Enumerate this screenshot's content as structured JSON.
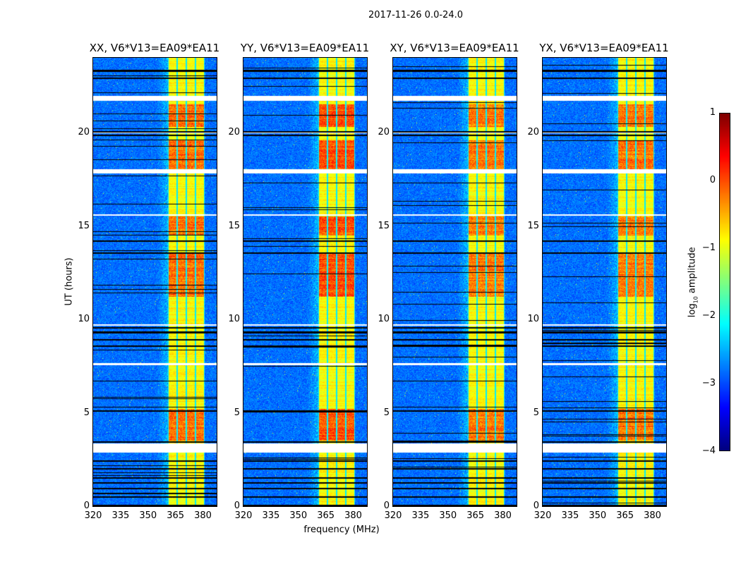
{
  "chart_data": {
    "type": "heatmap",
    "title": "2017-11-26 0.0-24.0",
    "xlabel": "frequency (MHz)",
    "ylabel": "UT (hours)",
    "xlim": [
      320,
      387.5
    ],
    "ylim": [
      0,
      24
    ],
    "xticks": [
      "320",
      "335",
      "350",
      "365",
      "380"
    ],
    "xtick_values": [
      320,
      335,
      350,
      365,
      380
    ],
    "yticks": [
      "0",
      "5",
      "10",
      "15",
      "20"
    ],
    "ytick_values": [
      0,
      5,
      10,
      15,
      20
    ],
    "colormap": "jet",
    "colorbar": {
      "label": "log10 amplitude",
      "label_main": "log",
      "label_sub": "10",
      "label_rest": " amplitude",
      "range": [
        -4,
        1
      ],
      "ticks": [
        "1",
        "0",
        "−1",
        "−2",
        "−3",
        "−4"
      ],
      "tick_values": [
        1,
        0,
        -1,
        -2,
        -3,
        -4
      ]
    },
    "panels": [
      {
        "title": "XX, V6*V13=EA09*EA11",
        "band_peak": 0.15
      },
      {
        "title": "YY, V6*V13=EA09*EA11",
        "band_peak": 0.3
      },
      {
        "title": "XY, V6*V13=EA09*EA11",
        "band_peak": 0.1
      },
      {
        "title": "YX, V6*V13=EA09*EA11",
        "band_peak": 0.1
      }
    ],
    "background_level": -3.3,
    "band_mhz": [
      361,
      381
    ],
    "band_level": -1.1,
    "channel_gaps_mhz": [
      361,
      366,
      371,
      376,
      381
    ],
    "active_periods_hours": [
      [
        3.5,
        5.2
      ],
      [
        11.2,
        13.5
      ],
      [
        18.0,
        19.6
      ],
      [
        20.3,
        21.5
      ],
      [
        14.5,
        15.5
      ]
    ],
    "flagged_white_hours": [
      [
        2.85,
        3.35
      ],
      [
        17.8,
        18.05
      ],
      [
        21.7,
        21.95
      ],
      [
        7.55,
        7.65
      ],
      [
        9.65,
        9.75
      ],
      [
        15.55,
        15.62
      ],
      [
        19.95,
        20.0
      ]
    ],
    "black_rows_hours": [
      0.05,
      0.5,
      0.95,
      1.25,
      1.5,
      2.0,
      2.4,
      3.45,
      5.1,
      8.55,
      8.9,
      9.3,
      9.55,
      13.55,
      14.2,
      15.6,
      19.85,
      20.05,
      22.9,
      23.3
    ]
  }
}
